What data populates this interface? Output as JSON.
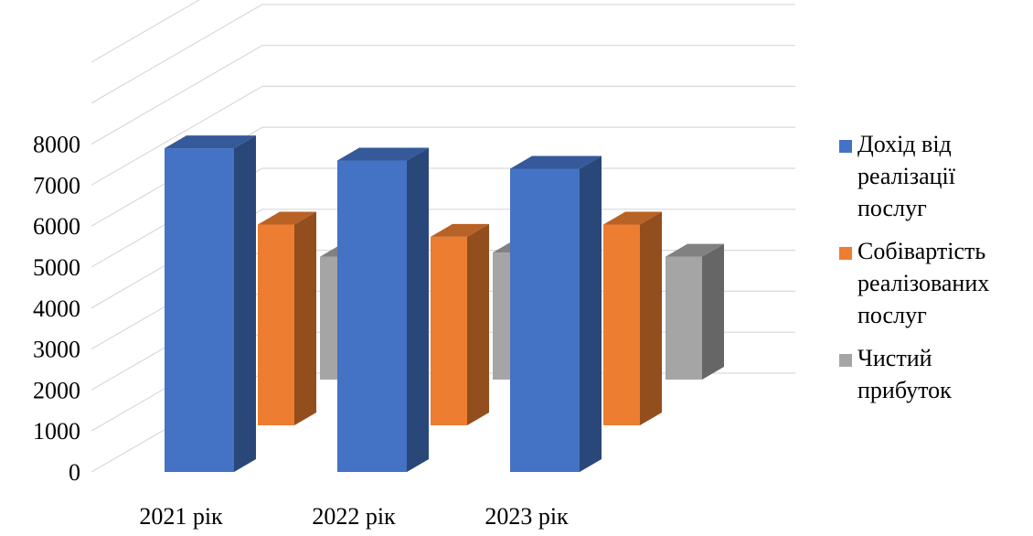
{
  "chart_data": {
    "type": "bar",
    "categories": [
      "2021 рік",
      "2022 рік",
      "2023 рік"
    ],
    "series": [
      {
        "name": "Дохід від реалізації послуг",
        "color": "#4472C4",
        "values": [
          7900,
          7600,
          7400
        ]
      },
      {
        "name": "Собівартість реалізованих послуг",
        "color": "#ED7D31",
        "values": [
          4900,
          4600,
          4900
        ]
      },
      {
        "name": "Чистий прибуток",
        "color": "#A5A5A5",
        "values": [
          3000,
          3100,
          3000
        ]
      }
    ],
    "yticks": [
      "0",
      "1000",
      "2000",
      "3000",
      "4000",
      "5000",
      "6000",
      "7000",
      "8000"
    ],
    "ylim": [
      0,
      8000
    ],
    "title": "",
    "xlabel": "",
    "ylabel": "",
    "grid": true,
    "legend": "right",
    "style": "3d-clustered-column"
  }
}
